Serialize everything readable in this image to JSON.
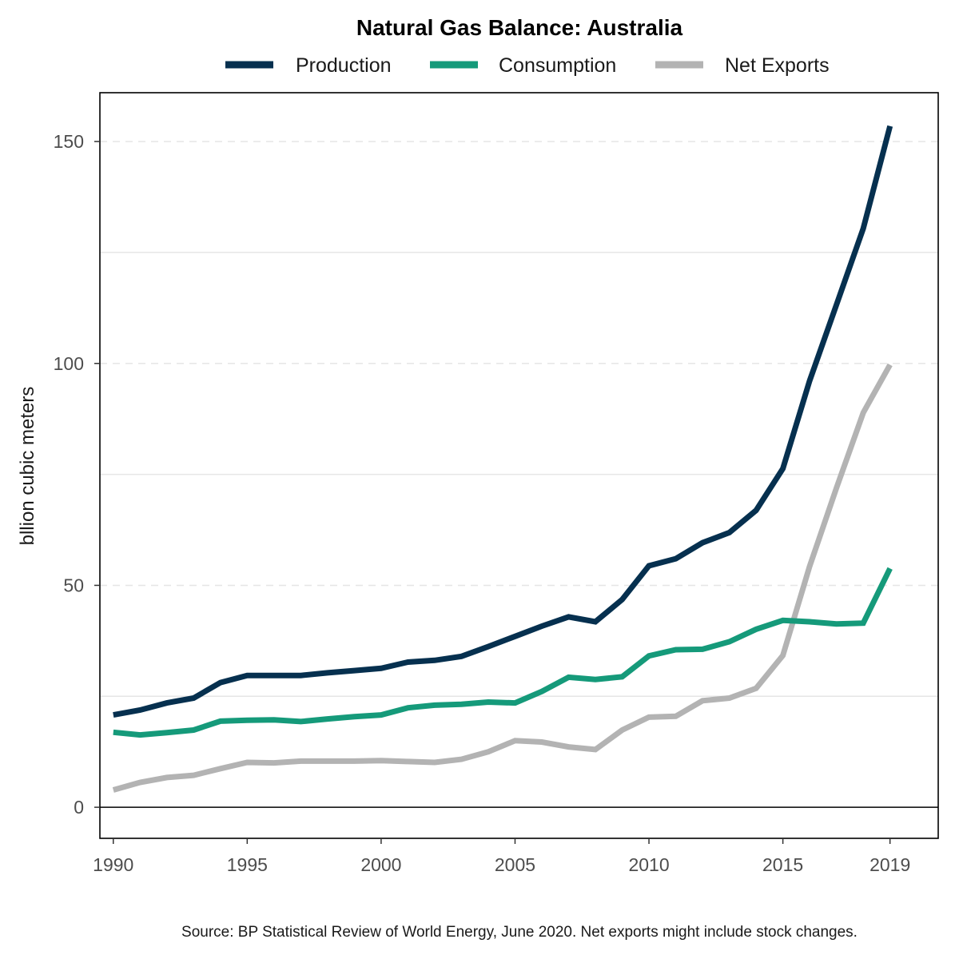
{
  "chart_data": {
    "type": "line",
    "title": "Natural Gas Balance: Australia",
    "ylabel": "bllion cubic meters",
    "xlabel": "",
    "caption": "Source: BP Statistical Review of World Energy, June 2020. Net exports might include stock changes.",
    "xlim": [
      1989.5,
      2020.8
    ],
    "ylim": [
      -7,
      161
    ],
    "x_ticks": [
      1990,
      1995,
      2000,
      2005,
      2010,
      2015,
      2019
    ],
    "x_tick_labels": [
      "1990",
      "1995",
      "2000",
      "2005",
      "2010",
      "2015",
      "2019"
    ],
    "y_ticks": [
      0,
      50,
      100,
      150
    ],
    "y_tick_labels": [
      "0",
      "50",
      "100",
      "150"
    ],
    "y_minor_gridlines": [
      25,
      75,
      125
    ],
    "legend_position": "top",
    "x": [
      1990,
      1991,
      1992,
      1993,
      1994,
      1995,
      1996,
      1997,
      1998,
      1999,
      2000,
      2001,
      2002,
      2003,
      2004,
      2005,
      2006,
      2007,
      2008,
      2009,
      2010,
      2011,
      2012,
      2013,
      2014,
      2015,
      2016,
      2017,
      2018,
      2019
    ],
    "series": [
      {
        "name": "Production",
        "color": "#06304f",
        "values": [
          20.8,
          21.9,
          23.5,
          24.6,
          28.1,
          29.7,
          29.7,
          29.7,
          30.3,
          30.8,
          31.3,
          32.7,
          33.1,
          34.0,
          36.2,
          38.5,
          40.8,
          42.9,
          41.8,
          46.8,
          54.4,
          56.0,
          59.6,
          61.9,
          66.9,
          76.3,
          96.1,
          113.2,
          130.4,
          153.5
        ]
      },
      {
        "name": "Consumption",
        "color": "#159a7a",
        "values": [
          16.9,
          16.3,
          16.8,
          17.4,
          19.4,
          19.6,
          19.7,
          19.3,
          19.9,
          20.4,
          20.8,
          22.4,
          23.0,
          23.2,
          23.7,
          23.5,
          26.1,
          29.3,
          28.8,
          29.4,
          34.1,
          35.5,
          35.6,
          37.3,
          40.1,
          42.1,
          41.8,
          41.3,
          41.5,
          53.8
        ]
      },
      {
        "name": "Net Exports",
        "color": "#b3b3b3",
        "values": [
          3.9,
          5.6,
          6.7,
          7.2,
          8.7,
          10.1,
          10.0,
          10.4,
          10.4,
          10.4,
          10.5,
          10.3,
          10.1,
          10.8,
          12.5,
          15.0,
          14.7,
          13.6,
          13.0,
          17.4,
          20.3,
          20.5,
          24.0,
          24.6,
          26.8,
          34.2,
          54.3,
          71.9,
          88.9,
          99.7
        ]
      }
    ],
    "grid": true
  }
}
